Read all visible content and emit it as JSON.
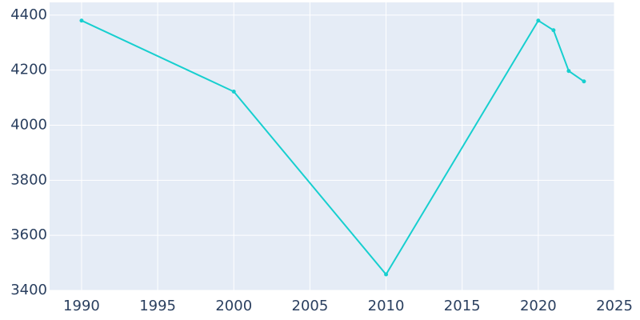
{
  "chart_data": {
    "type": "line",
    "x": [
      1990,
      2000,
      2010,
      2020,
      2021,
      2022,
      2023
    ],
    "series": [
      {
        "color": "#17cfcf",
        "values": [
          4380,
          4122,
          3458,
          4380,
          4345,
          4197,
          4159
        ]
      }
    ],
    "xlim": [
      1987.9,
      2025
    ],
    "xticks": [
      1990,
      1995,
      2000,
      2005,
      2010,
      2015,
      2020,
      2025
    ],
    "ylim": [
      3400,
      4446
    ],
    "yticks": [
      3400,
      3600,
      3800,
      4000,
      4200,
      4400
    ],
    "grid": true
  }
}
